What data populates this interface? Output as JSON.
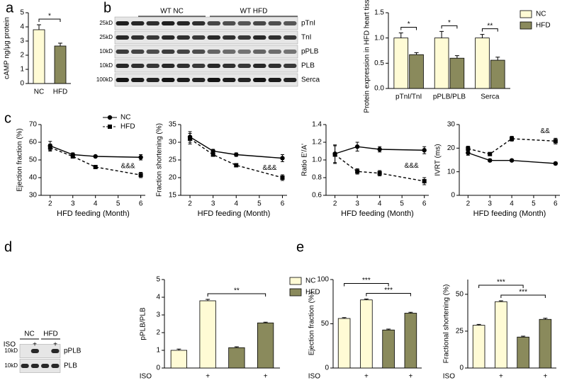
{
  "panel_labels": [
    "a",
    "b",
    "c",
    "d",
    "e"
  ],
  "blot_b": {
    "groups": [
      "WT NC",
      "WT HFD"
    ],
    "proteins": [
      "pTnI",
      "TnI",
      "pPLB",
      "PLB",
      "Serca"
    ],
    "markers": [
      "25kD",
      "25kD",
      "10kD",
      "10kD",
      "100kD"
    ]
  },
  "blot_d": {
    "groups": [
      "NC",
      "HFD"
    ],
    "treatment": "ISO",
    "treatment_marks": [
      "+",
      "+"
    ],
    "proteins": [
      "pPLB",
      "PLB"
    ],
    "markers": [
      "10kD",
      "10kD"
    ]
  },
  "chart_data": [
    {
      "type": "bar",
      "ylabel": "cAMP ng/μg protein",
      "categories": [
        "NC",
        "HFD"
      ],
      "values": [
        3.8,
        2.65
      ],
      "errors": [
        0.35,
        0.2
      ],
      "colors": [
        "#fffbd5",
        "#8a8a5c"
      ],
      "ylim": [
        0,
        5
      ],
      "yticks": [
        0,
        1,
        2,
        3,
        4,
        5
      ],
      "significance": [
        "*"
      ]
    },
    {
      "type": "bar",
      "ylabel": "Protein expression in HFD heart tissues",
      "categories": [
        "pTnI/TnI",
        "pPLB/PLB",
        "Serca"
      ],
      "series": [
        {
          "name": "NC",
          "color": "#fffbd5",
          "values": [
            1,
            1,
            1
          ],
          "errors": [
            0.1,
            0.13,
            0.07
          ]
        },
        {
          "name": "HFD",
          "color": "#8a8a5c",
          "values": [
            0.67,
            0.6,
            0.56
          ],
          "errors": [
            0.04,
            0.05,
            0.06
          ]
        }
      ],
      "ylim": [
        0,
        1.5
      ],
      "yticks": [
        {
          "value": 0,
          "label": "0.0"
        },
        0.5,
        {
          "value": 1,
          "label": "1.0"
        },
        1.5
      ],
      "legend": "right",
      "significance": [
        "*",
        "*",
        "**"
      ]
    },
    {
      "type": "line",
      "ylabel": "Ejection fraction (%)",
      "xlabel": "HFD feeding (Month)",
      "x": [
        2,
        3,
        4,
        6
      ],
      "xlim": [
        1.6,
        6.2
      ],
      "xticks": [
        2,
        3,
        4,
        5,
        6
      ],
      "ylim": [
        30,
        70
      ],
      "yticks": [
        30,
        40,
        50,
        60,
        70
      ],
      "legend": "upper right",
      "annotation": "&&&",
      "series": [
        {
          "name": "NC",
          "color": "#000000",
          "marker": "circle",
          "dashed": false,
          "values": [
            58,
            53,
            52,
            51.5
          ],
          "errors": [
            2.5,
            1,
            0.5,
            1.5
          ]
        },
        {
          "name": "HFD",
          "color": "#000000",
          "marker": "square",
          "dashed": true,
          "values": [
            57,
            52,
            46,
            41.5
          ],
          "errors": [
            2,
            1,
            0.8,
            1.5
          ]
        }
      ]
    },
    {
      "type": "line",
      "ylabel": "Fraction shortening (%)",
      "xlabel": "HFD feeding (Month)",
      "x": [
        2,
        3,
        4,
        6
      ],
      "xlim": [
        1.6,
        6.2
      ],
      "xticks": [
        2,
        3,
        4,
        5,
        6
      ],
      "ylim": [
        15,
        35
      ],
      "yticks": [
        15,
        20,
        25,
        30,
        35
      ],
      "annotation": "&&&",
      "series": [
        {
          "color": "#000000",
          "marker": "circle",
          "dashed": false,
          "values": [
            31.5,
            27.5,
            26.5,
            25.5
          ],
          "errors": [
            1.5,
            0.5,
            0.5,
            1
          ]
        },
        {
          "color": "#000000",
          "marker": "square",
          "dashed": true,
          "values": [
            31,
            26.5,
            23.5,
            20
          ],
          "errors": [
            1.5,
            0.5,
            0.5,
            0.8
          ]
        }
      ]
    },
    {
      "type": "line",
      "ylabel": "Ratio E'/A'",
      "xlabel": "HFD feeding (Month)",
      "x": [
        2,
        3,
        4,
        6
      ],
      "xlim": [
        1.6,
        6.2
      ],
      "xticks": [
        2,
        3,
        4,
        5,
        6
      ],
      "ylim": [
        0.6,
        1.4
      ],
      "yticks": [
        0.6,
        0.8,
        {
          "value": 1,
          "label": "1.0"
        },
        1.2,
        1.4
      ],
      "annotation": "&&&",
      "series": [
        {
          "color": "#000000",
          "marker": "circle",
          "dashed": false,
          "values": [
            1.07,
            1.15,
            1.12,
            1.11
          ],
          "errors": [
            0.1,
            0.05,
            0.03,
            0.04
          ]
        },
        {
          "color": "#000000",
          "marker": "square",
          "dashed": true,
          "values": [
            1.06,
            0.87,
            0.85,
            0.76
          ],
          "errors": [
            0.1,
            0.03,
            0.03,
            0.04
          ]
        }
      ]
    },
    {
      "type": "line",
      "ylabel": "IVRT (ms)",
      "xlabel": "HFD feeding (Month)",
      "x": [
        2,
        3,
        4,
        6
      ],
      "xlim": [
        1.6,
        6.2
      ],
      "xticks": [
        2,
        3,
        4,
        5,
        6
      ],
      "ylim": [
        0,
        30
      ],
      "yticks": [
        0,
        10,
        20,
        30
      ],
      "annotation": "&&",
      "series": [
        {
          "color": "#000000",
          "marker": "circle",
          "dashed": false,
          "values": [
            18,
            14.8,
            14.8,
            13.5
          ],
          "errors": [
            1,
            0.6,
            0.5,
            0.6
          ]
        },
        {
          "color": "#000000",
          "marker": "square",
          "dashed": true,
          "values": [
            19.8,
            17.5,
            24,
            23
          ],
          "errors": [
            1,
            0.5,
            1,
            1.2
          ]
        }
      ]
    },
    {
      "type": "bar",
      "ylabel": "pPLB/PLB",
      "xlabel": "ISO",
      "categories": [
        null,
        "+",
        null,
        "+"
      ],
      "series": [
        {
          "name": "NC",
          "color": "#fffbd5",
          "values": [
            1,
            3.8,
            null,
            null
          ],
          "errors": [
            0.07,
            0.08,
            null,
            null
          ]
        },
        {
          "name": "HFD",
          "color": "#8a8a5c",
          "values": [
            null,
            null,
            1.15,
            2.55
          ],
          "errors": [
            null,
            null,
            0.05,
            0.04
          ]
        }
      ],
      "ylim": [
        0,
        5
      ],
      "yticks": [
        0,
        1,
        2,
        3,
        4,
        5
      ],
      "legend": "right",
      "significance": [
        "**"
      ]
    },
    {
      "type": "bar",
      "ylabel": "Ejection fraction (%)",
      "xlabel": "ISO",
      "categories": [
        null,
        "+",
        null,
        "+"
      ],
      "values": [
        56,
        77,
        43,
        62
      ],
      "errors": [
        1,
        1,
        1,
        1
      ],
      "colors": [
        "#fffbd5",
        "#fffbd5",
        "#8a8a5c",
        "#8a8a5c"
      ],
      "ylim": [
        0,
        100
      ],
      "yticks": [
        0,
        50,
        100
      ],
      "significance": [
        "***",
        "***"
      ]
    },
    {
      "type": "bar",
      "ylabel": "Fractional shortening (%)",
      "xlabel": "ISO",
      "categories": [
        null,
        "+",
        null,
        "+"
      ],
      "values": [
        29,
        45,
        21,
        33
      ],
      "errors": [
        0.6,
        0.6,
        0.6,
        0.8
      ],
      "colors": [
        "#fffbd5",
        "#fffbd5",
        "#8a8a5c",
        "#8a8a5c"
      ],
      "ylim": [
        0,
        60
      ],
      "yticks": [
        0,
        25,
        50
      ],
      "significance": [
        "***",
        "***"
      ]
    }
  ]
}
